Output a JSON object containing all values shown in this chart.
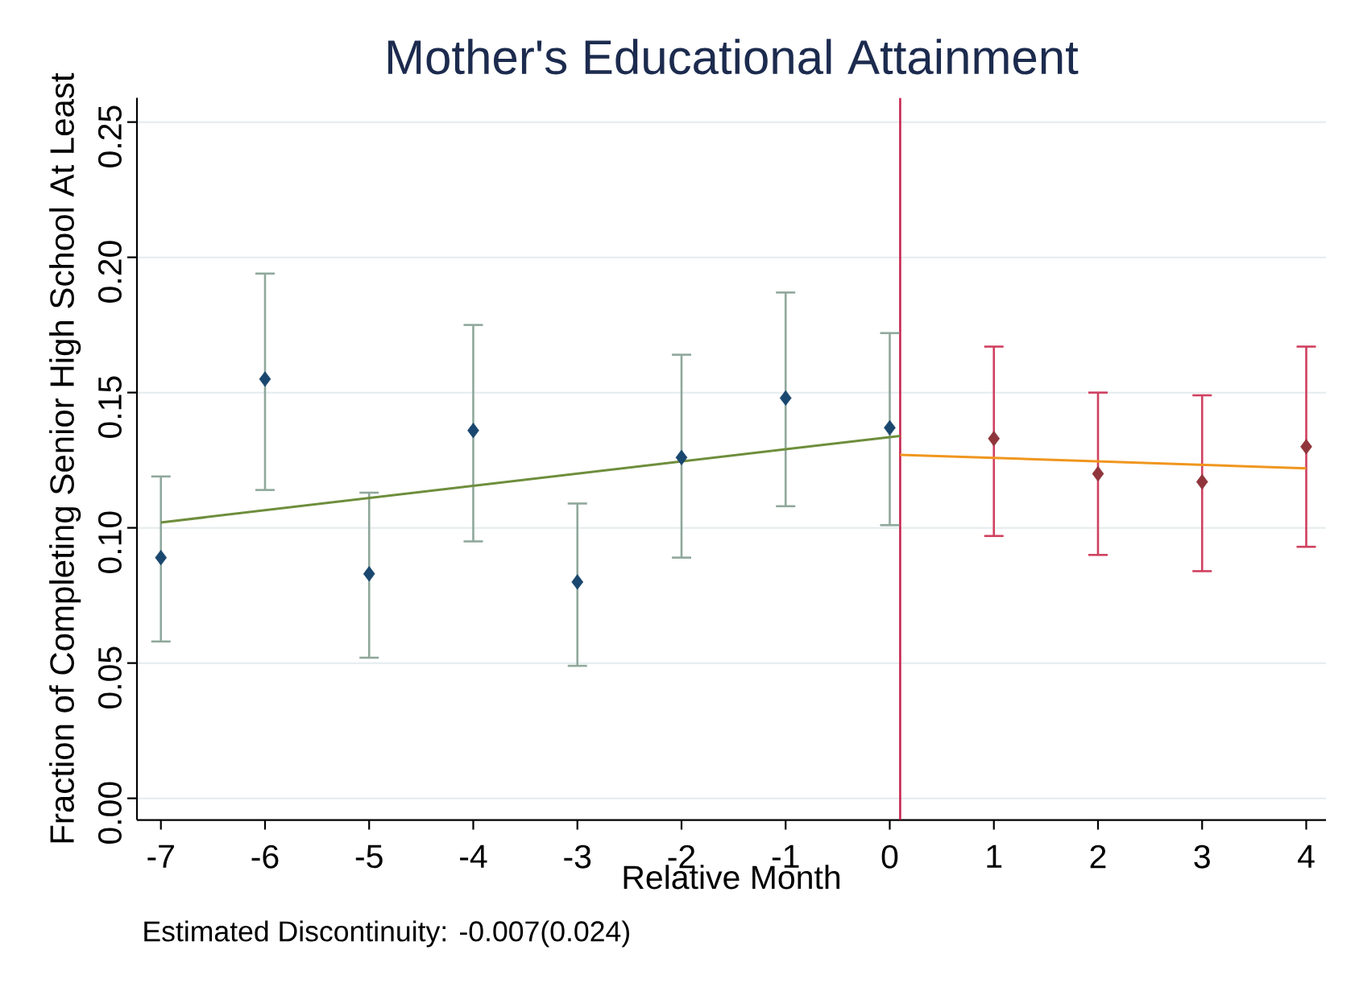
{
  "chart_data": {
    "type": "scatter",
    "title": "Mother's Educational Attainment",
    "xlabel": "Relative Month",
    "ylabel": "Fraction of Completing Senior High School At Least",
    "annotations": [
      "Estimated Discontinuity: -0.007(0.024)"
    ],
    "xlim": [
      -7.23,
      4.19
    ],
    "ylim": [
      -0.008,
      0.259
    ],
    "xticks": [
      -7,
      -6,
      -5,
      -4,
      -3,
      -2,
      -1,
      0,
      1,
      2,
      3,
      4
    ],
    "yticks": [
      {
        "value": 0,
        "label": "0.00"
      },
      {
        "value": 0.05,
        "label": "0.05"
      },
      {
        "value": 0.1,
        "label": "0.10"
      },
      {
        "value": 0.15,
        "label": "0.15"
      },
      {
        "value": 0.2,
        "label": "0.20"
      },
      {
        "value": 0.25,
        "label": "0.25"
      }
    ],
    "grid": "y",
    "series": [
      {
        "color": "#1a476f",
        "marker": "diamond",
        "x": [
          -7,
          -6,
          -5,
          -4,
          -3,
          -2,
          -1,
          0
        ],
        "values": [
          0.089,
          0.155,
          0.083,
          0.136,
          0.08,
          0.126,
          0.148,
          0.137
        ],
        "errors": [
          [
            0.058,
            0.119
          ],
          [
            0.114,
            0.194
          ],
          [
            0.052,
            0.113
          ],
          [
            0.095,
            0.175
          ],
          [
            0.049,
            0.109
          ],
          [
            0.089,
            0.164
          ],
          [
            0.108,
            0.187
          ],
          [
            0.101,
            0.172
          ]
        ]
      },
      {
        "type": "line",
        "color": "#6e8e3c",
        "x": [
          -7,
          0.1
        ],
        "values": [
          0.102,
          0.134
        ]
      },
      {
        "color": "#90353b",
        "marker": "diamond",
        "x": [
          1,
          2,
          3,
          4
        ],
        "values": [
          0.133,
          0.12,
          0.117,
          0.13
        ],
        "errors": [
          [
            0.097,
            0.167
          ],
          [
            0.09,
            0.15
          ],
          [
            0.084,
            0.149
          ],
          [
            0.093,
            0.167
          ]
        ]
      },
      {
        "type": "line",
        "color": "#f0961e",
        "x": [
          0.1,
          4
        ],
        "values": [
          0.127,
          0.122
        ]
      }
    ],
    "ref_lines": [
      {
        "axis": "x",
        "value": 0.1,
        "color": "#c8254f"
      }
    ]
  }
}
